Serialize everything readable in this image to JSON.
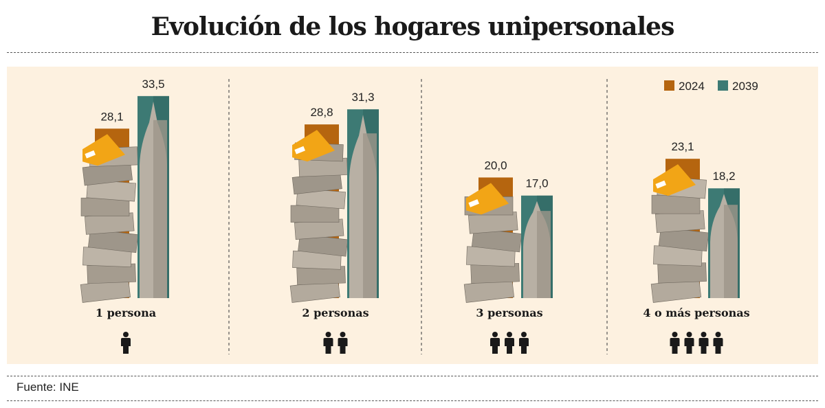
{
  "title": "Evolución de los hogares unipersonales",
  "source": "Fuente: INE",
  "chart_data": {
    "type": "bar",
    "title": "Evolución de los hogares unipersonales",
    "categories": [
      "1 persona",
      "2 personas",
      "3 personas",
      "4 o más personas"
    ],
    "people_icons": [
      1,
      2,
      3,
      4
    ],
    "series": [
      {
        "name": "2024",
        "color": "#b5650f",
        "values": [
          28.1,
          28.8,
          20.0,
          23.1
        ],
        "labels": [
          "28,1",
          "28,8",
          "20,0",
          "23,1"
        ]
      },
      {
        "name": "2039",
        "color": "#3d7a74",
        "values": [
          33.5,
          31.3,
          17.0,
          18.2
        ],
        "labels": [
          "33,5",
          "31,3",
          "17,0",
          "18,2"
        ]
      }
    ],
    "legend": "top-right",
    "ylim": [
      0,
      35
    ],
    "grid": false
  }
}
